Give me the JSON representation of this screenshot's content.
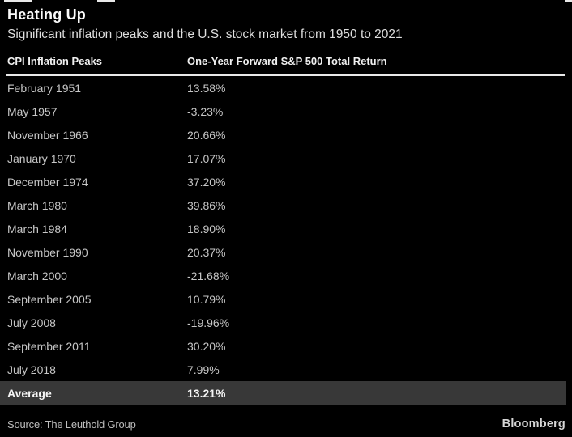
{
  "header": {
    "title": "Heating Up",
    "subtitle": "Significant inflation peaks and the U.S. stock market from 1950 to 2021"
  },
  "table": {
    "columns": {
      "peaks": "CPI Inflation Peaks",
      "returns": "One-Year Forward S&P 500 Total Return"
    },
    "rows": [
      {
        "peak": "February 1951",
        "return": "13.58%"
      },
      {
        "peak": "May 1957",
        "return": "-3.23%"
      },
      {
        "peak": "November 1966",
        "return": "20.66%"
      },
      {
        "peak": "January 1970",
        "return": "17.07%"
      },
      {
        "peak": "December 1974",
        "return": "37.20%"
      },
      {
        "peak": "March 1980",
        "return": "39.86%"
      },
      {
        "peak": "March 1984",
        "return": "18.90%"
      },
      {
        "peak": "November 1990",
        "return": "20.37%"
      },
      {
        "peak": "March 2000",
        "return": "-21.68%"
      },
      {
        "peak": "September 2005",
        "return": "10.79%"
      },
      {
        "peak": "July 2008",
        "return": "-19.96%"
      },
      {
        "peak": "September 2011",
        "return": "30.20%"
      },
      {
        "peak": "July 2018",
        "return": "7.99%"
      }
    ],
    "summary": {
      "label": "Average",
      "value": "13.21%"
    }
  },
  "footer": {
    "source": "Source: The Leuthold Group",
    "brand": "Bloomberg"
  },
  "colors": {
    "background": "#000000",
    "title_text": "#fafafa",
    "row_text": "#c6c6c6",
    "rule": "#e9e9e9",
    "average_row_background": "#383838",
    "average_text": "#f5f5f5"
  },
  "chart_data": {
    "type": "table",
    "title": "Heating Up",
    "subtitle": "Significant inflation peaks and the U.S. stock market from 1950 to 2021",
    "columns": [
      "CPI Inflation Peaks",
      "One-Year Forward S&P 500 Total Return"
    ],
    "categories": [
      "February 1951",
      "May 1957",
      "November 1966",
      "January 1970",
      "December 1974",
      "March 1980",
      "March 1984",
      "November 1990",
      "March 2000",
      "September 2005",
      "July 2008",
      "September 2011",
      "July 2018"
    ],
    "values": [
      13.58,
      -3.23,
      20.66,
      17.07,
      37.2,
      39.86,
      18.9,
      20.37,
      -21.68,
      10.79,
      -19.96,
      30.2,
      7.99
    ],
    "average": 13.21,
    "value_unit": "%",
    "source": "The Leuthold Group",
    "brand": "Bloomberg"
  }
}
